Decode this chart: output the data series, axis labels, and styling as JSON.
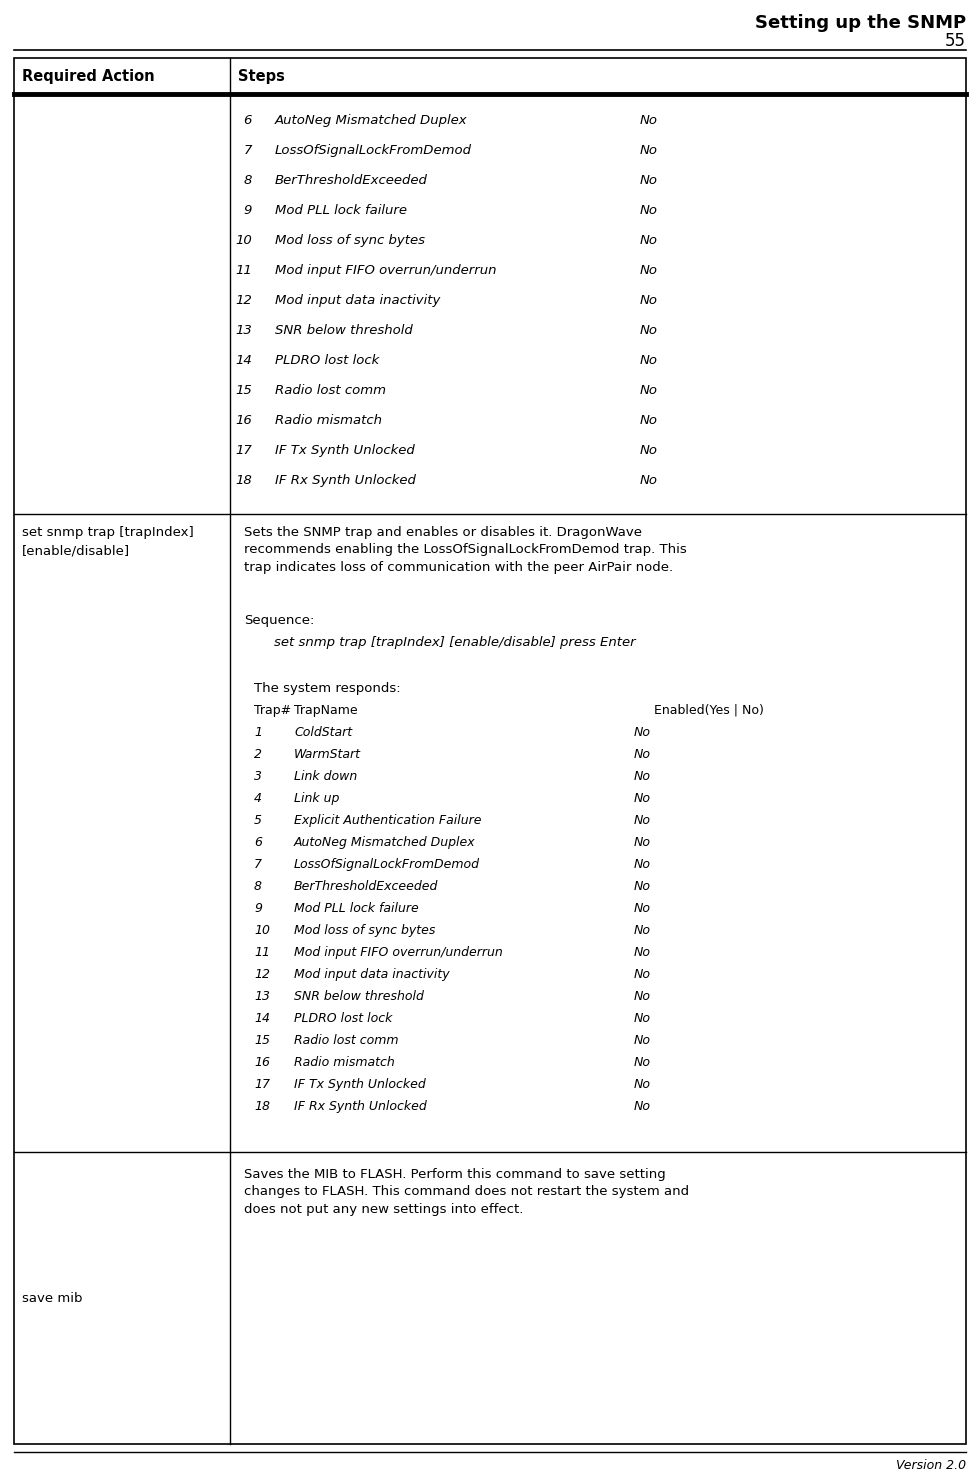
{
  "title_line1": "Setting up the SNMP",
  "title_line2": "55",
  "version": "Version 2.0",
  "col1_header": "Required Action",
  "col2_header": "Steps",
  "bg_color": "#ffffff",
  "row1_lines": [
    [
      "6",
      "AutoNeg Mismatched Duplex",
      "No"
    ],
    [
      "7",
      "LossOfSignalLockFromDemod",
      "No"
    ],
    [
      "8",
      "BerThresholdExceeded",
      "No"
    ],
    [
      "9",
      "Mod PLL lock failure",
      "No"
    ],
    [
      "10",
      "Mod loss of sync bytes",
      "No"
    ],
    [
      "11",
      "Mod input FIFO overrun/underrun",
      "No"
    ],
    [
      "12",
      "Mod input data inactivity",
      "No"
    ],
    [
      "13",
      "SNR below threshold",
      "No"
    ],
    [
      "14",
      "PLDRO lost lock",
      "No"
    ],
    [
      "15",
      "Radio lost comm",
      "No"
    ],
    [
      "16",
      "Radio mismatch",
      "No"
    ],
    [
      "17",
      "IF Tx Synth Unlocked",
      "No"
    ],
    [
      "18",
      "IF Rx Synth Unlocked",
      "No"
    ]
  ],
  "row2_action": "set snmp trap [trapIndex]\n[enable/disable]",
  "row2_desc": "Sets the SNMP trap and enables or disables it. DragonWave\nrecommends enabling the LossOfSignalLockFromDemod trap. This\ntrap indicates loss of communication with the peer AirPair node.",
  "row2_seq_label": "Sequence:",
  "row2_seq_cmd": "set snmp trap [trapIndex] [enable/disable] press Enter",
  "row2_responds": "The system responds:",
  "row2_trap_hdr_num": "Trap#",
  "row2_trap_hdr_name": "TrapName",
  "row2_trap_hdr_enabled": "Enabled(Yes | No)",
  "row2_trap_lines": [
    [
      "1",
      "ColdStart",
      "No"
    ],
    [
      "2",
      "WarmStart",
      "No"
    ],
    [
      "3",
      "Link down",
      "No"
    ],
    [
      "4",
      "Link up",
      "No"
    ],
    [
      "5",
      "Explicit Authentication Failure",
      "No"
    ],
    [
      "6",
      "AutoNeg Mismatched Duplex",
      "No"
    ],
    [
      "7",
      "LossOfSignalLockFromDemod",
      "No"
    ],
    [
      "8",
      "BerThresholdExceeded",
      "No"
    ],
    [
      "9",
      "Mod PLL lock failure",
      "No"
    ],
    [
      "10",
      "Mod loss of sync bytes",
      "No"
    ],
    [
      "11",
      "Mod input FIFO overrun/underrun",
      "No"
    ],
    [
      "12",
      "Mod input data inactivity",
      "No"
    ],
    [
      "13",
      "SNR below threshold",
      "No"
    ],
    [
      "14",
      "PLDRO lost lock",
      "No"
    ],
    [
      "15",
      "Radio lost comm",
      "No"
    ],
    [
      "16",
      "Radio mismatch",
      "No"
    ],
    [
      "17",
      "IF Tx Synth Unlocked",
      "No"
    ],
    [
      "18",
      "IF Rx Synth Unlocked",
      "No"
    ]
  ],
  "row3_action": "save mib",
  "row3_desc": "Saves the MIB to FLASH. Perform this command to save setting\nchanges to FLASH. This command does not restart the system and\ndoes not put any new settings into effect."
}
